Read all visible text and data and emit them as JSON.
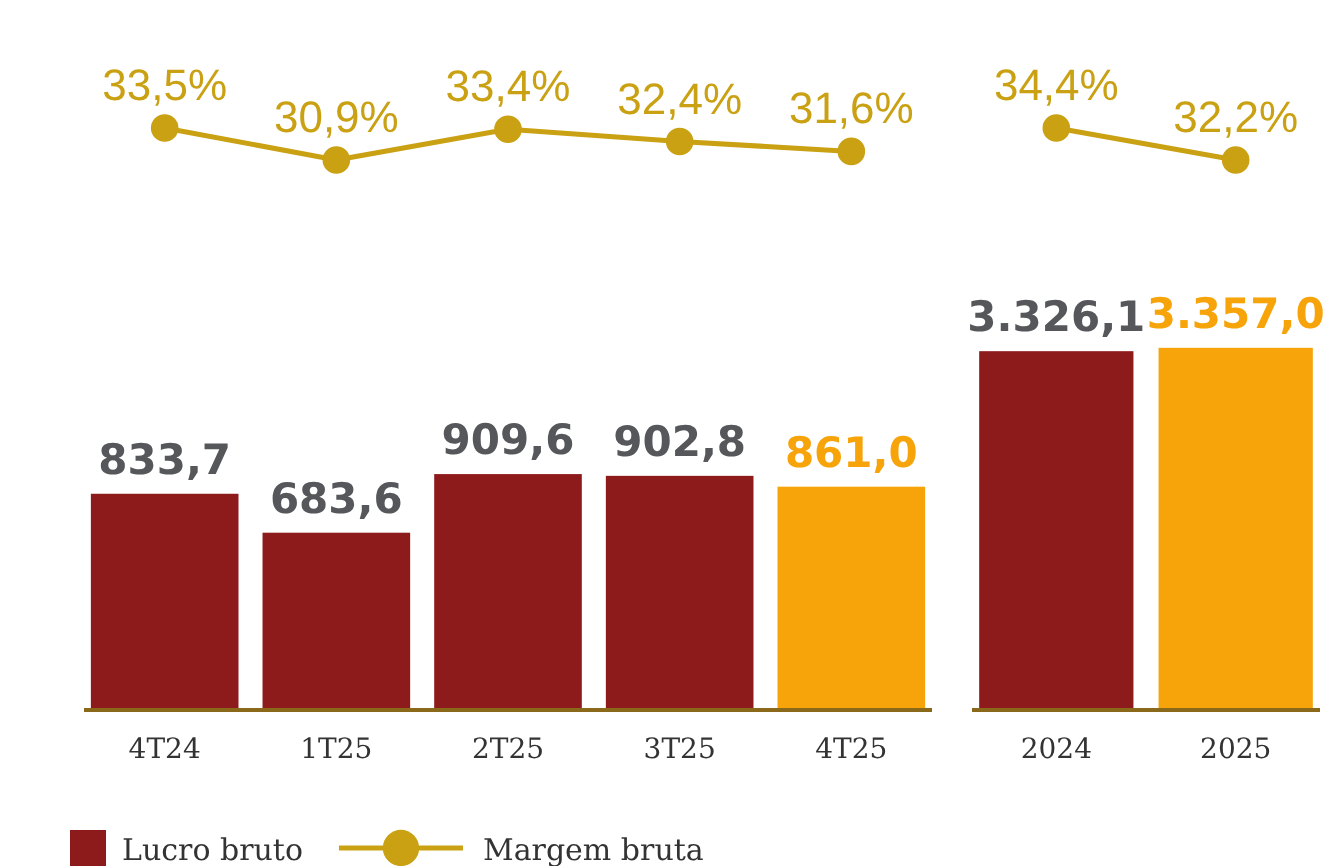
{
  "chart_data": [
    {
      "type": "line",
      "categories": [
        null,
        null,
        null,
        null,
        null
      ],
      "tick_labels": false,
      "legend": "bottom",
      "marker": "circle",
      "series": [
        {
          "name": "Margem bruta",
          "color": "#c9a113",
          "values": [
            33.5,
            30.9,
            33.4,
            32.4,
            31.6
          ],
          "value_labels": [
            "33,5%",
            "30,9%",
            "33,4%",
            "32,4%",
            "31,6%"
          ]
        }
      ]
    },
    {
      "type": "line",
      "categories": [
        null,
        null
      ],
      "tick_labels": false,
      "marker": "circle",
      "series": [
        {
          "color": "#c9a113",
          "values": [
            34.4,
            32.2
          ],
          "value_labels": [
            "34,4%",
            "32,2%"
          ]
        }
      ]
    },
    {
      "type": "bar",
      "categories": [
        "4T24",
        "1T25",
        "2T25",
        "3T25",
        "4T25"
      ],
      "tick_labels": "x",
      "legend": "bottom",
      "series": [
        {
          "name": "Lucro bruto",
          "values": [
            833.7,
            683.6,
            909.6,
            902.8,
            861.0
          ],
          "colors": [
            "#8e1b1b",
            "#8e1b1b",
            "#8e1b1b",
            "#8e1b1b",
            "#f7a30a"
          ],
          "value_labels": [
            "833,7",
            "683,6",
            "909,6",
            "902,8",
            "861,0"
          ]
        }
      ]
    },
    {
      "type": "bar",
      "categories": [
        "2024",
        "2025"
      ],
      "tick_labels": "x",
      "series": [
        {
          "values": [
            3326.1,
            3357.0
          ],
          "colors": [
            "#8e1b1b",
            "#f7a30a"
          ],
          "value_labels": [
            "3.326,1",
            "3.357,0"
          ]
        }
      ]
    }
  ]
}
